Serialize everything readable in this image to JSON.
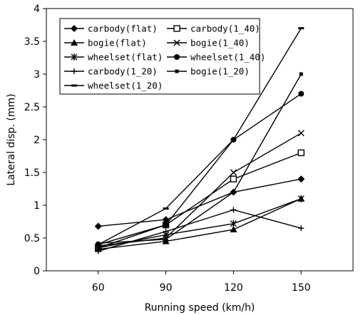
{
  "chart_data": {
    "type": "line",
    "title": "",
    "xlabel": "Running speed (km/h)",
    "ylabel": "Lateral disp. (mm)",
    "x": [
      60,
      90,
      120,
      150
    ],
    "x_ticks": [
      "60",
      "90",
      "120",
      "150"
    ],
    "xlim": [
      37,
      173
    ],
    "ylim": [
      0,
      4
    ],
    "y_ticks": [
      "0",
      "0.5",
      "1",
      "1.5",
      "2",
      "2.5",
      "3",
      "3.5",
      "4"
    ],
    "grid": false,
    "legend_position": "top-left",
    "series": [
      {
        "name": "carbody(flat)",
        "marker": "diamond",
        "values": [
          0.68,
          0.78,
          1.2,
          1.4
        ]
      },
      {
        "name": "carbody(1_40)",
        "marker": "open-square",
        "values": [
          0.35,
          0.7,
          1.4,
          1.8
        ]
      },
      {
        "name": "bogie(flat)",
        "marker": "triangle",
        "values": [
          0.33,
          0.45,
          0.63,
          1.1
        ]
      },
      {
        "name": "bogie(1_40)",
        "marker": "x",
        "values": [
          0.38,
          0.5,
          1.5,
          2.1
        ]
      },
      {
        "name": "wheelset(flat)",
        "marker": "asterisk",
        "values": [
          0.35,
          0.55,
          0.72,
          1.1
        ]
      },
      {
        "name": "wheelset(1_40)",
        "marker": "circle",
        "values": [
          0.4,
          0.7,
          2.0,
          2.7
        ]
      },
      {
        "name": "carbody(1_20)",
        "marker": "plus",
        "values": [
          0.3,
          0.6,
          0.93,
          0.65
        ]
      },
      {
        "name": "bogie(1_20)",
        "marker": "small-square",
        "values": [
          0.42,
          0.48,
          1.2,
          3.0
        ]
      },
      {
        "name": "wheelset(1_20)",
        "marker": "dash",
        "values": [
          0.4,
          0.95,
          2.0,
          3.7
        ]
      }
    ]
  }
}
